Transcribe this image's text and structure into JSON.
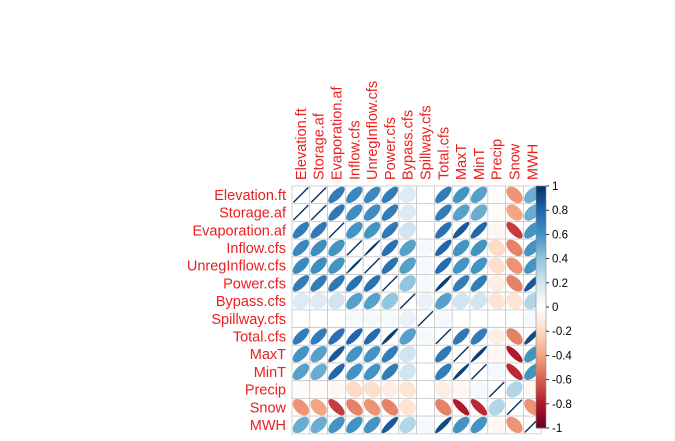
{
  "chart_data": {
    "type": "heatmap",
    "variables": [
      "Elevation.ft",
      "Storage.af",
      "Evaporation.af",
      "Inflow.cfs",
      "UnregInflow.cfs",
      "Power.cfs",
      "Bypass.cfs",
      "Spillway.cfs",
      "Total.cfs",
      "MaxT",
      "MinT",
      "Precip",
      "Snow",
      "MWH"
    ],
    "matrix": [
      [
        1.0,
        0.99,
        0.7,
        0.65,
        0.65,
        0.7,
        0.15,
        0.0,
        0.7,
        0.6,
        0.55,
        -0.02,
        -0.45,
        0.5
      ],
      [
        0.99,
        1.0,
        0.72,
        0.62,
        0.62,
        0.7,
        0.15,
        0.0,
        0.7,
        0.55,
        0.5,
        -0.02,
        -0.4,
        0.5
      ],
      [
        0.7,
        0.72,
        1.0,
        0.6,
        0.6,
        0.72,
        0.2,
        0.0,
        0.75,
        0.85,
        0.8,
        -0.05,
        -0.7,
        0.6
      ],
      [
        0.65,
        0.62,
        0.6,
        1.0,
        0.98,
        0.75,
        0.55,
        0.05,
        0.8,
        0.6,
        0.6,
        -0.2,
        -0.5,
        0.6
      ],
      [
        0.65,
        0.62,
        0.6,
        0.98,
        1.0,
        0.75,
        0.55,
        0.05,
        0.78,
        0.6,
        0.6,
        -0.18,
        -0.45,
        0.6
      ],
      [
        0.7,
        0.7,
        0.72,
        0.75,
        0.75,
        1.0,
        0.4,
        0.05,
        0.95,
        0.7,
        0.7,
        -0.1,
        -0.5,
        0.85
      ],
      [
        0.15,
        0.15,
        0.2,
        0.55,
        0.55,
        0.4,
        1.0,
        0.1,
        0.55,
        0.2,
        0.2,
        -0.15,
        -0.15,
        0.3
      ],
      [
        0.0,
        0.0,
        0.0,
        0.05,
        0.05,
        0.05,
        0.1,
        1.0,
        0.05,
        0.0,
        0.0,
        0.0,
        0.0,
        0.05
      ],
      [
        0.7,
        0.7,
        0.75,
        0.8,
        0.78,
        0.95,
        0.55,
        0.05,
        1.0,
        0.72,
        0.7,
        -0.1,
        -0.5,
        0.9
      ],
      [
        0.6,
        0.55,
        0.85,
        0.6,
        0.6,
        0.7,
        0.2,
        0.0,
        0.72,
        1.0,
        0.95,
        -0.05,
        -0.8,
        0.6
      ],
      [
        0.55,
        0.5,
        0.8,
        0.6,
        0.6,
        0.7,
        0.2,
        0.0,
        0.7,
        0.95,
        1.0,
        0.05,
        -0.75,
        0.6
      ],
      [
        -0.02,
        -0.02,
        -0.05,
        -0.2,
        -0.18,
        -0.1,
        -0.15,
        0.0,
        -0.1,
        -0.05,
        0.05,
        1.0,
        0.3,
        -0.05
      ],
      [
        -0.45,
        -0.4,
        -0.7,
        -0.5,
        -0.45,
        -0.5,
        -0.15,
        0.0,
        -0.5,
        -0.8,
        -0.75,
        0.3,
        1.0,
        -0.45
      ],
      [
        0.5,
        0.5,
        0.6,
        0.6,
        0.6,
        0.85,
        0.3,
        0.05,
        0.9,
        0.6,
        0.6,
        -0.05,
        -0.45,
        1.0
      ]
    ],
    "colorbar": {
      "ticks": [
        1,
        0.8,
        0.6,
        0.4,
        0.2,
        0,
        -0.2,
        -0.4,
        -0.6,
        -0.8,
        -1
      ],
      "tick_labels": [
        "1",
        "0.8",
        "0.6",
        "0.4",
        "0.2",
        "0",
        "-0.2",
        "-0.4",
        "-0.6",
        "-0.8",
        "-1"
      ],
      "range": [
        -1,
        1
      ],
      "colors": [
        "#67001f",
        "#b2182b",
        "#d6604d",
        "#f4a582",
        "#fddbc7",
        "#ffffff",
        "#d1e5f0",
        "#92c5de",
        "#4393c3",
        "#2166ac",
        "#053061"
      ]
    },
    "label_color": "#e8201e",
    "grid": true,
    "legend": "right"
  }
}
